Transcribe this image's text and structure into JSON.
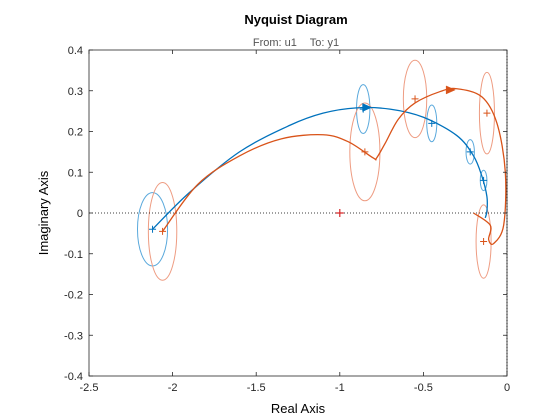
{
  "chart_data": {
    "type": "line",
    "title": "Nyquist Diagram",
    "subtitle_from": "From: u1",
    "subtitle_to": "To: y1",
    "xlabel": "Real Axis",
    "ylabel": "Imaginary Axis",
    "xlim": [
      -2.5,
      0
    ],
    "ylim": [
      -0.4,
      0.4
    ],
    "xticks": [
      "-2.5",
      "-2",
      "-1.5",
      "-1",
      "-0.5",
      "0"
    ],
    "yticks": [
      "-0.4",
      "-0.3",
      "-0.2",
      "-0.1",
      "0",
      "0.1",
      "0.2",
      "0.3",
      "0.4"
    ],
    "xtick_values": [
      -2.5,
      -2,
      -1.5,
      -1,
      -0.5,
      0
    ],
    "ytick_values": [
      -0.4,
      -0.3,
      -0.2,
      -0.1,
      0,
      0.1,
      0.2,
      0.3,
      0.4
    ],
    "critical_point": {
      "x": -1,
      "y": 0,
      "color": "#d62728"
    },
    "series": [
      {
        "color": "#0072bd",
        "ellipse_color": "#5aa9dc",
        "points": [
          [
            -2.12,
            -0.04
          ],
          [
            -1.9,
            0.05
          ],
          [
            -1.6,
            0.15
          ],
          [
            -1.3,
            0.215
          ],
          [
            -1.1,
            0.245
          ],
          [
            -0.9,
            0.258
          ],
          [
            -0.7,
            0.255
          ],
          [
            -0.5,
            0.235
          ],
          [
            -0.3,
            0.19
          ],
          [
            -0.2,
            0.14
          ],
          [
            -0.15,
            0.09
          ],
          [
            -0.12,
            0.04
          ],
          [
            -0.12,
            0.005
          ],
          [
            -0.13,
            -0.012
          ]
        ],
        "arrow_at": [
          -0.84,
          0.259
        ],
        "uncertainty": [
          {
            "x": -2.12,
            "y": -0.04,
            "rx": 0.09,
            "ry": 0.09
          },
          {
            "x": -0.86,
            "y": 0.255,
            "rx": 0.04,
            "ry": 0.06
          },
          {
            "x": -0.45,
            "y": 0.22,
            "rx": 0.03,
            "ry": 0.045
          },
          {
            "x": -0.22,
            "y": 0.15,
            "rx": 0.025,
            "ry": 0.03
          },
          {
            "x": -0.14,
            "y": 0.08,
            "rx": 0.02,
            "ry": 0.025
          }
        ]
      },
      {
        "color": "#d95319",
        "ellipse_color": "#ee9c82",
        "points": [
          [
            -2.06,
            -0.045
          ],
          [
            -1.85,
            0.07
          ],
          [
            -1.6,
            0.14
          ],
          [
            -1.35,
            0.182
          ],
          [
            -1.1,
            0.192
          ],
          [
            -0.95,
            0.175
          ],
          [
            -0.8,
            0.135
          ],
          [
            -0.78,
            0.135
          ],
          [
            -0.73,
            0.17
          ],
          [
            -0.65,
            0.23
          ],
          [
            -0.55,
            0.27
          ],
          [
            -0.4,
            0.298
          ],
          [
            -0.3,
            0.305
          ],
          [
            -0.15,
            0.285
          ],
          [
            -0.06,
            0.22
          ],
          [
            -0.01,
            0.1
          ],
          [
            -0.02,
            -0.03
          ],
          [
            -0.08,
            -0.075
          ],
          [
            -0.11,
            -0.065
          ],
          [
            -0.1,
            -0.03
          ],
          [
            -0.2,
            0.0
          ]
        ],
        "arrow_at": [
          -0.34,
          0.302
        ],
        "uncertainty": [
          {
            "x": -2.06,
            "y": -0.045,
            "rx": 0.085,
            "ry": 0.12
          },
          {
            "x": -0.85,
            "y": 0.15,
            "rx": 0.09,
            "ry": 0.12
          },
          {
            "x": -0.55,
            "y": 0.28,
            "rx": 0.07,
            "ry": 0.095
          },
          {
            "x": -0.12,
            "y": 0.245,
            "rx": 0.045,
            "ry": 0.1
          },
          {
            "x": -0.14,
            "y": -0.07,
            "rx": 0.045,
            "ry": 0.09
          }
        ]
      }
    ]
  }
}
